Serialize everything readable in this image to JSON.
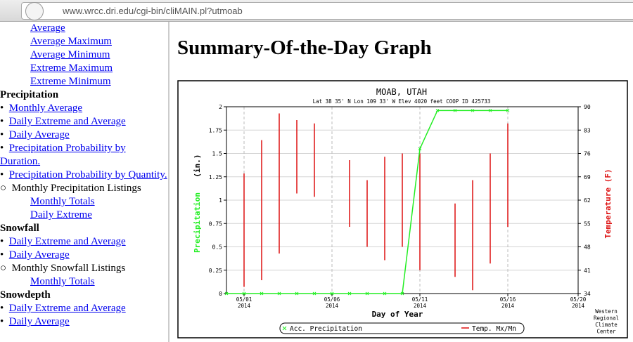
{
  "browser": {
    "url": "www.wrcc.dri.edu/cgi-bin/cliMAIN.pl?utmoab"
  },
  "sidebar": {
    "items": [
      {
        "text": "Average",
        "kind": "sub"
      },
      {
        "text": "Average Maximum",
        "kind": "sub"
      },
      {
        "text": "Average Minimum",
        "kind": "sub"
      },
      {
        "text": "Extreme Maximum",
        "kind": "sub"
      },
      {
        "text": "Extreme Minimum",
        "kind": "sub"
      },
      {
        "text": "Precipitation",
        "kind": "heading"
      },
      {
        "text": "Monthly Average",
        "kind": "bullet"
      },
      {
        "text": "Daily Extreme and Average",
        "kind": "bullet"
      },
      {
        "text": "Daily Average",
        "kind": "bullet"
      },
      {
        "text": "Precipitation Probability by Duration.",
        "kind": "bullet"
      },
      {
        "text": "Precipitation Probability by Quantity.",
        "kind": "bullet"
      },
      {
        "text": "Monthly Precipitation Listings",
        "kind": "circle"
      },
      {
        "text": "Monthly Totals",
        "kind": "sub"
      },
      {
        "text": "Daily Extreme",
        "kind": "sub"
      },
      {
        "text": "Snowfall",
        "kind": "heading"
      },
      {
        "text": "Daily Extreme and Average",
        "kind": "bullet"
      },
      {
        "text": "Daily Average",
        "kind": "bullet"
      },
      {
        "text": "Monthly Snowfall Listings",
        "kind": "circle"
      },
      {
        "text": "Monthly Totals",
        "kind": "sub"
      },
      {
        "text": "Snowdepth",
        "kind": "heading"
      },
      {
        "text": "Daily Extreme and Average",
        "kind": "bullet"
      },
      {
        "text": "Daily Average",
        "kind": "bullet"
      }
    ]
  },
  "main": {
    "heading": "Summary-Of-the-Day Graph"
  },
  "chart": {
    "type": "bar+line",
    "title": "MOAB, UTAH",
    "subtitle": "Lat 38 35' N    Lon 109 33' W    Elev 4020 feet    COOP ID 425733",
    "xlabel": "Day of Year",
    "ylabel": "Precipitation",
    "ylabel_unit": "(in.)",
    "y2label": "Temperature (F)",
    "credit": [
      "Western",
      "Regional",
      "Climate",
      "Center"
    ],
    "xlim": [
      "2014-04-30",
      "2014-05-20"
    ],
    "xticks": [
      {
        "value": "2014-05-01",
        "label": "05/01 2014"
      },
      {
        "value": "2014-05-06",
        "label": "05/06 2014"
      },
      {
        "value": "2014-05-11",
        "label": "05/11 2014"
      },
      {
        "value": "2014-05-16",
        "label": "05/16 2014"
      },
      {
        "value": "2014-05-20",
        "label": "05/20 2014"
      }
    ],
    "ylim": [
      0,
      2
    ],
    "yticks": [
      0,
      0.25,
      0.5,
      0.75,
      1,
      1.25,
      1.5,
      1.75,
      2
    ],
    "y2lim": [
      34,
      90
    ],
    "y2ticks": [
      34,
      41,
      48,
      55,
      62,
      69,
      76,
      83,
      90
    ],
    "grid": true,
    "precipitation": {
      "name": "Acc. Precipitation",
      "color": "#22ee22",
      "x": [
        "2014-04-30",
        "2014-05-01",
        "2014-05-02",
        "2014-05-03",
        "2014-05-04",
        "2014-05-05",
        "2014-05-06",
        "2014-05-07",
        "2014-05-08",
        "2014-05-09",
        "2014-05-10",
        "2014-05-11",
        "2014-05-12",
        "2014-05-13",
        "2014-05-14",
        "2014-05-15",
        "2014-05-16"
      ],
      "values": [
        0,
        0,
        0,
        0,
        0,
        0,
        0,
        0,
        0,
        0,
        0,
        1.55,
        1.96,
        1.96,
        1.96,
        1.96,
        1.96
      ]
    },
    "temperature": {
      "name": "Temp. Mx/Mn",
      "color": "#dd1111",
      "axis": "y2",
      "x": [
        "2014-05-01",
        "2014-05-02",
        "2014-05-03",
        "2014-05-04",
        "2014-05-05",
        "2014-05-06",
        "2014-05-07",
        "2014-05-08",
        "2014-05-09",
        "2014-05-10",
        "2014-05-11",
        "2014-05-12",
        "2014-05-13",
        "2014-05-14",
        "2014-05-15",
        "2014-05-16"
      ],
      "max": [
        70,
        80,
        88,
        86,
        85,
        null,
        74,
        68,
        75,
        76,
        76,
        null,
        61,
        68,
        76,
        85
      ],
      "min": [
        36,
        38,
        46,
        64,
        63,
        null,
        54,
        48,
        44,
        48,
        41,
        null,
        39,
        35,
        43,
        54
      ]
    }
  }
}
